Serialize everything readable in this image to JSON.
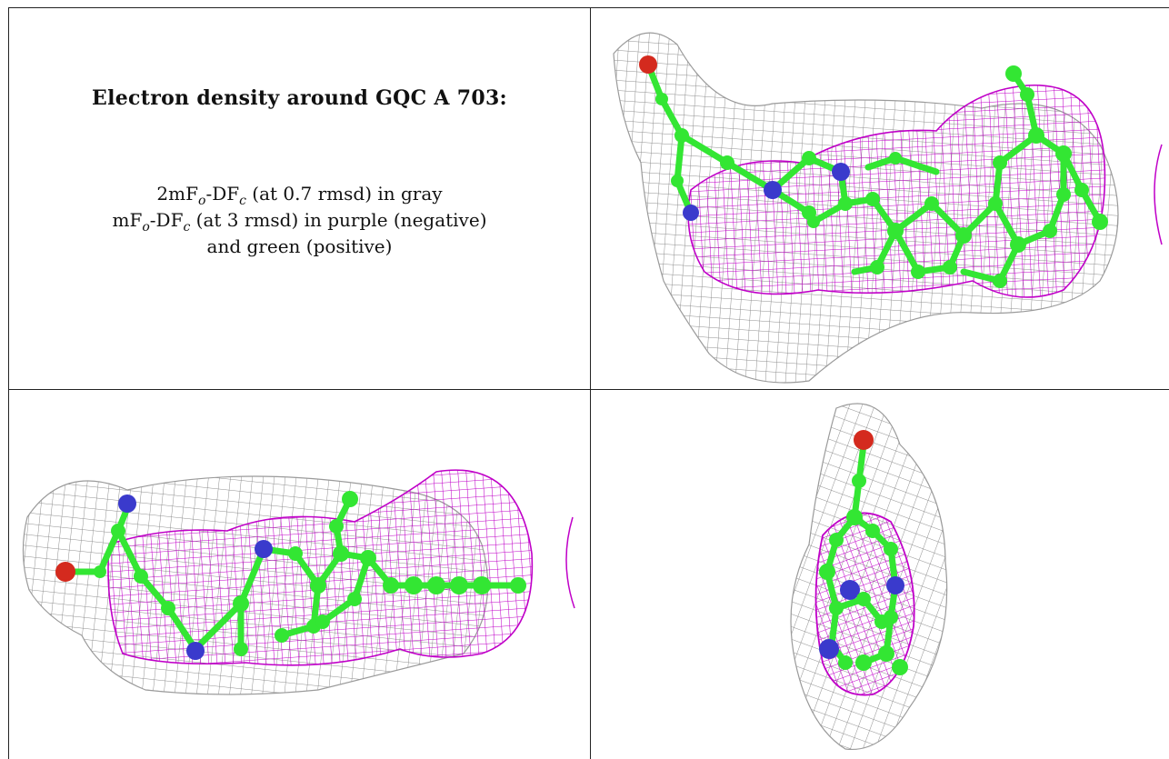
{
  "title": "Electron density around GQC A 703:",
  "legend": {
    "line1": {
      "a": "2mF",
      "sub1": "o",
      "b": "-DF",
      "sub2": "c",
      "c": " (at 0.7 rmsd) in gray"
    },
    "line2": {
      "a": "mF",
      "sub1": "o",
      "b": "-DF",
      "sub2": "c",
      "c": " (at 3 rmsd) in purple (negative)"
    },
    "line3": "and green (positive)"
  },
  "colors": {
    "mesh_2fofc": "#8a8a8a",
    "mesh_fofc_negative": "#c000c8",
    "carbon": "#33e633",
    "nitrogen": "#3a3acc",
    "oxygen": "#d42a1e"
  },
  "views": [
    "ligand-view-top-right",
    "ligand-view-bottom-left",
    "ligand-view-bottom-right"
  ]
}
